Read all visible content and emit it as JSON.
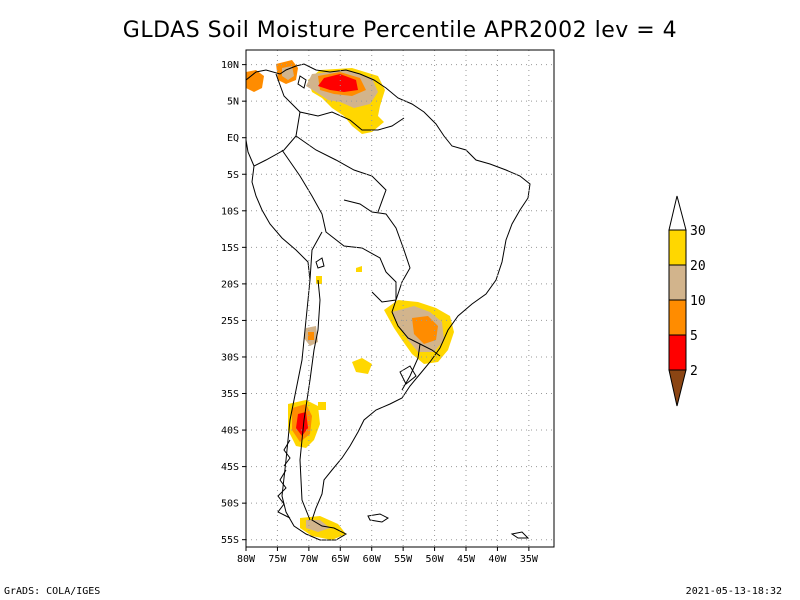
{
  "title": "GLDAS Soil Moisture Percentile APR2002 lev = 4",
  "footer": {
    "left": "GrADS: COLA/IGES",
    "right": "2021-05-13-18:32"
  },
  "map": {
    "lon_range": [
      -80,
      -31
    ],
    "lat_range": [
      -56,
      12
    ],
    "lat_ticks": [
      {
        "value": 10,
        "label": "10N"
      },
      {
        "value": 5,
        "label": "5N"
      },
      {
        "value": 0,
        "label": "EQ"
      },
      {
        "value": -5,
        "label": "5S"
      },
      {
        "value": -10,
        "label": "10S"
      },
      {
        "value": -15,
        "label": "15S"
      },
      {
        "value": -20,
        "label": "20S"
      },
      {
        "value": -25,
        "label": "25S"
      },
      {
        "value": -30,
        "label": "30S"
      },
      {
        "value": -35,
        "label": "35S"
      },
      {
        "value": -40,
        "label": "40S"
      },
      {
        "value": -45,
        "label": "45S"
      },
      {
        "value": -50,
        "label": "50S"
      },
      {
        "value": -55,
        "label": "55S"
      }
    ],
    "lon_ticks": [
      {
        "value": -80,
        "label": "80W"
      },
      {
        "value": -75,
        "label": "75W"
      },
      {
        "value": -70,
        "label": "70W"
      },
      {
        "value": -65,
        "label": "65W"
      },
      {
        "value": -60,
        "label": "60W"
      },
      {
        "value": -55,
        "label": "55W"
      },
      {
        "value": -50,
        "label": "50W"
      },
      {
        "value": -45,
        "label": "45W"
      },
      {
        "value": -40,
        "label": "40W"
      },
      {
        "value": -35,
        "label": "35W"
      }
    ]
  },
  "colorbar": {
    "labels": [
      "2",
      "5",
      "10",
      "20",
      "30"
    ],
    "colors": [
      "#8b4513",
      "#ff0000",
      "#ff8c00",
      "#d2b48c",
      "#ffd700",
      "#ffffff"
    ]
  },
  "colors": {
    "pct_lt2": "#8b4513",
    "pct_2_5": "#ff0000",
    "pct_5_10": "#ff8c00",
    "pct_10_20": "#d2b48c",
    "pct_20_30": "#ffd700"
  }
}
